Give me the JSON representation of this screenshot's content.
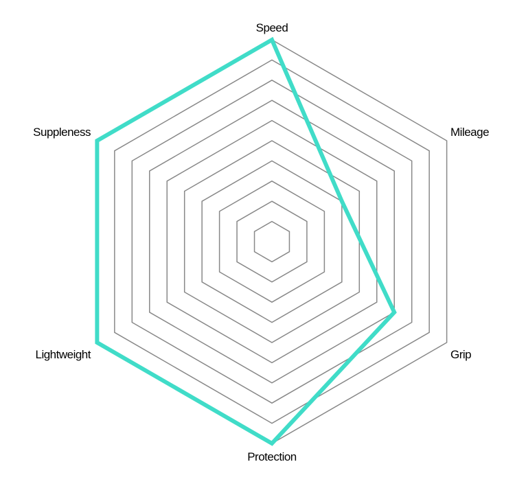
{
  "chart_data": {
    "type": "radar",
    "axes": [
      "Speed",
      "Mileage",
      "Grip",
      "Protection",
      "Lightweight",
      "Suppleness"
    ],
    "series": [
      {
        "values": [
          10,
          4,
          7,
          10,
          10,
          10
        ],
        "color": "#40DCC8"
      }
    ],
    "range": [
      0,
      10
    ],
    "rings": 10,
    "grid": true,
    "grid_color": "#888888"
  }
}
